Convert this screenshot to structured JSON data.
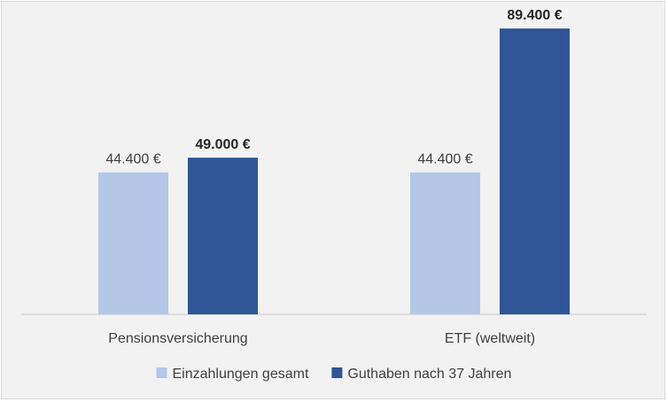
{
  "chart_data": {
    "type": "bar",
    "title": "",
    "xlabel": "",
    "ylabel": "",
    "categories": [
      "Pensionsversicherung",
      "ETF (weltweit)"
    ],
    "ylim": [
      0,
      95000
    ],
    "grid": false,
    "legend_position": "bottom",
    "series": [
      {
        "name": "Einzahlungen gesamt",
        "color": "#b4c7e7",
        "values": [
          44400,
          44400
        ],
        "labels": [
          "44.400 €",
          "44.400 €"
        ],
        "label_bold": false
      },
      {
        "name": "Guthaben nach 37 Jahren",
        "color": "#2f5597",
        "values": [
          49000,
          89400
        ],
        "labels": [
          "49.000 €",
          "89.400 €"
        ],
        "label_bold": true
      }
    ]
  }
}
